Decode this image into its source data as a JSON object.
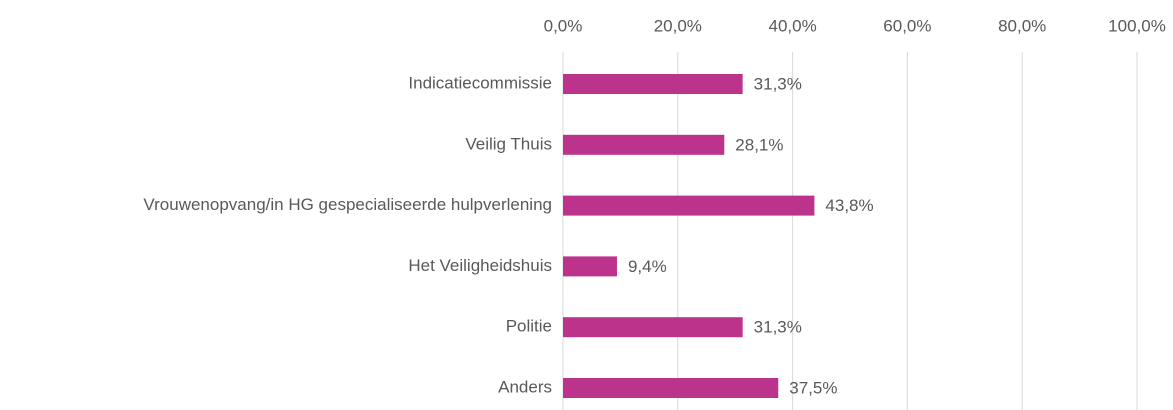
{
  "chart_data": {
    "type": "barh",
    "categories": [
      "Indicatiecommissie",
      "Veilig Thuis",
      "Vrouwenopvang/in HG gespecialiseerde hulpverlening",
      "Het Veiligheidshuis",
      "Politie",
      "Anders"
    ],
    "values": [
      31.3,
      28.1,
      43.8,
      9.4,
      31.3,
      37.5
    ],
    "value_labels": [
      "31,3%",
      "28,1%",
      "43,8%",
      "9,4%",
      "31,3%",
      "37,5%"
    ],
    "color": "#bc338c",
    "xlim": [
      0,
      100
    ],
    "xticks": [
      {
        "value": 0,
        "label": "0,0%"
      },
      {
        "value": 20,
        "label": "20,0%"
      },
      {
        "value": 40,
        "label": "40,0%"
      },
      {
        "value": 60,
        "label": "60,0%"
      },
      {
        "value": 80,
        "label": "80,0%"
      },
      {
        "value": 100,
        "label": "100,0%"
      }
    ],
    "grid": true
  }
}
